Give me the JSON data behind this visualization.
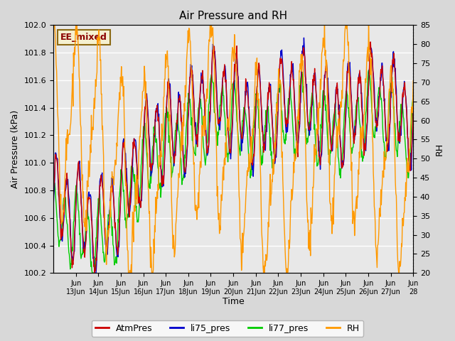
{
  "title": "Air Pressure and RH",
  "xlabel": "Time",
  "ylabel_left": "Air Pressure (kPa)",
  "ylabel_right": "RH",
  "ylim_left": [
    100.2,
    102.0
  ],
  "ylim_right": [
    20,
    85
  ],
  "yticks_left": [
    100.2,
    100.4,
    100.6,
    100.8,
    101.0,
    101.2,
    101.4,
    101.6,
    101.8,
    102.0
  ],
  "yticks_right": [
    20,
    25,
    30,
    35,
    40,
    45,
    50,
    55,
    60,
    65,
    70,
    75,
    80,
    85
  ],
  "annotation": "EE_mixed",
  "annotation_bg": "#f5f0d0",
  "annotation_border": "#8b6914",
  "colors": {
    "AtmPres": "#cc0000",
    "li75_pres": "#0000cc",
    "li77_pres": "#00cc00",
    "RH": "#ff9900"
  },
  "fig_bg": "#d8d8d8",
  "plot_bg": "#e8e8e8",
  "grid_color": "#ffffff",
  "lw_pressure": 1.0,
  "lw_rh": 1.0,
  "figsize": [
    6.4,
    4.8
  ],
  "dpi": 100
}
